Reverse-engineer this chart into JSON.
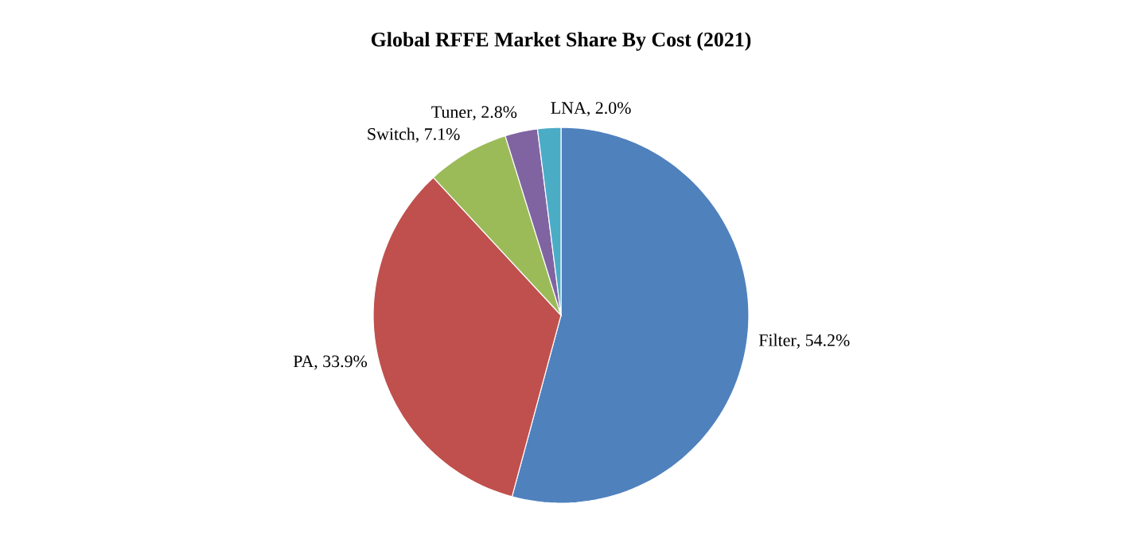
{
  "chart_data": {
    "type": "pie",
    "title": "Global RFFE Market Share By Cost (2021)",
    "categories": [
      "Filter",
      "PA",
      "Switch",
      "Tuner",
      "LNA"
    ],
    "values": [
      54.2,
      33.9,
      7.1,
      2.8,
      2.0
    ],
    "value_labels": [
      ", 54.2%",
      ", 33.9%",
      ", 7.1%",
      ", 2.8%",
      ", 2.0%"
    ],
    "colors": [
      "#4f81bd",
      "#c0504d",
      "#9bbb59",
      "#8064a2",
      "#4bacc6"
    ]
  }
}
